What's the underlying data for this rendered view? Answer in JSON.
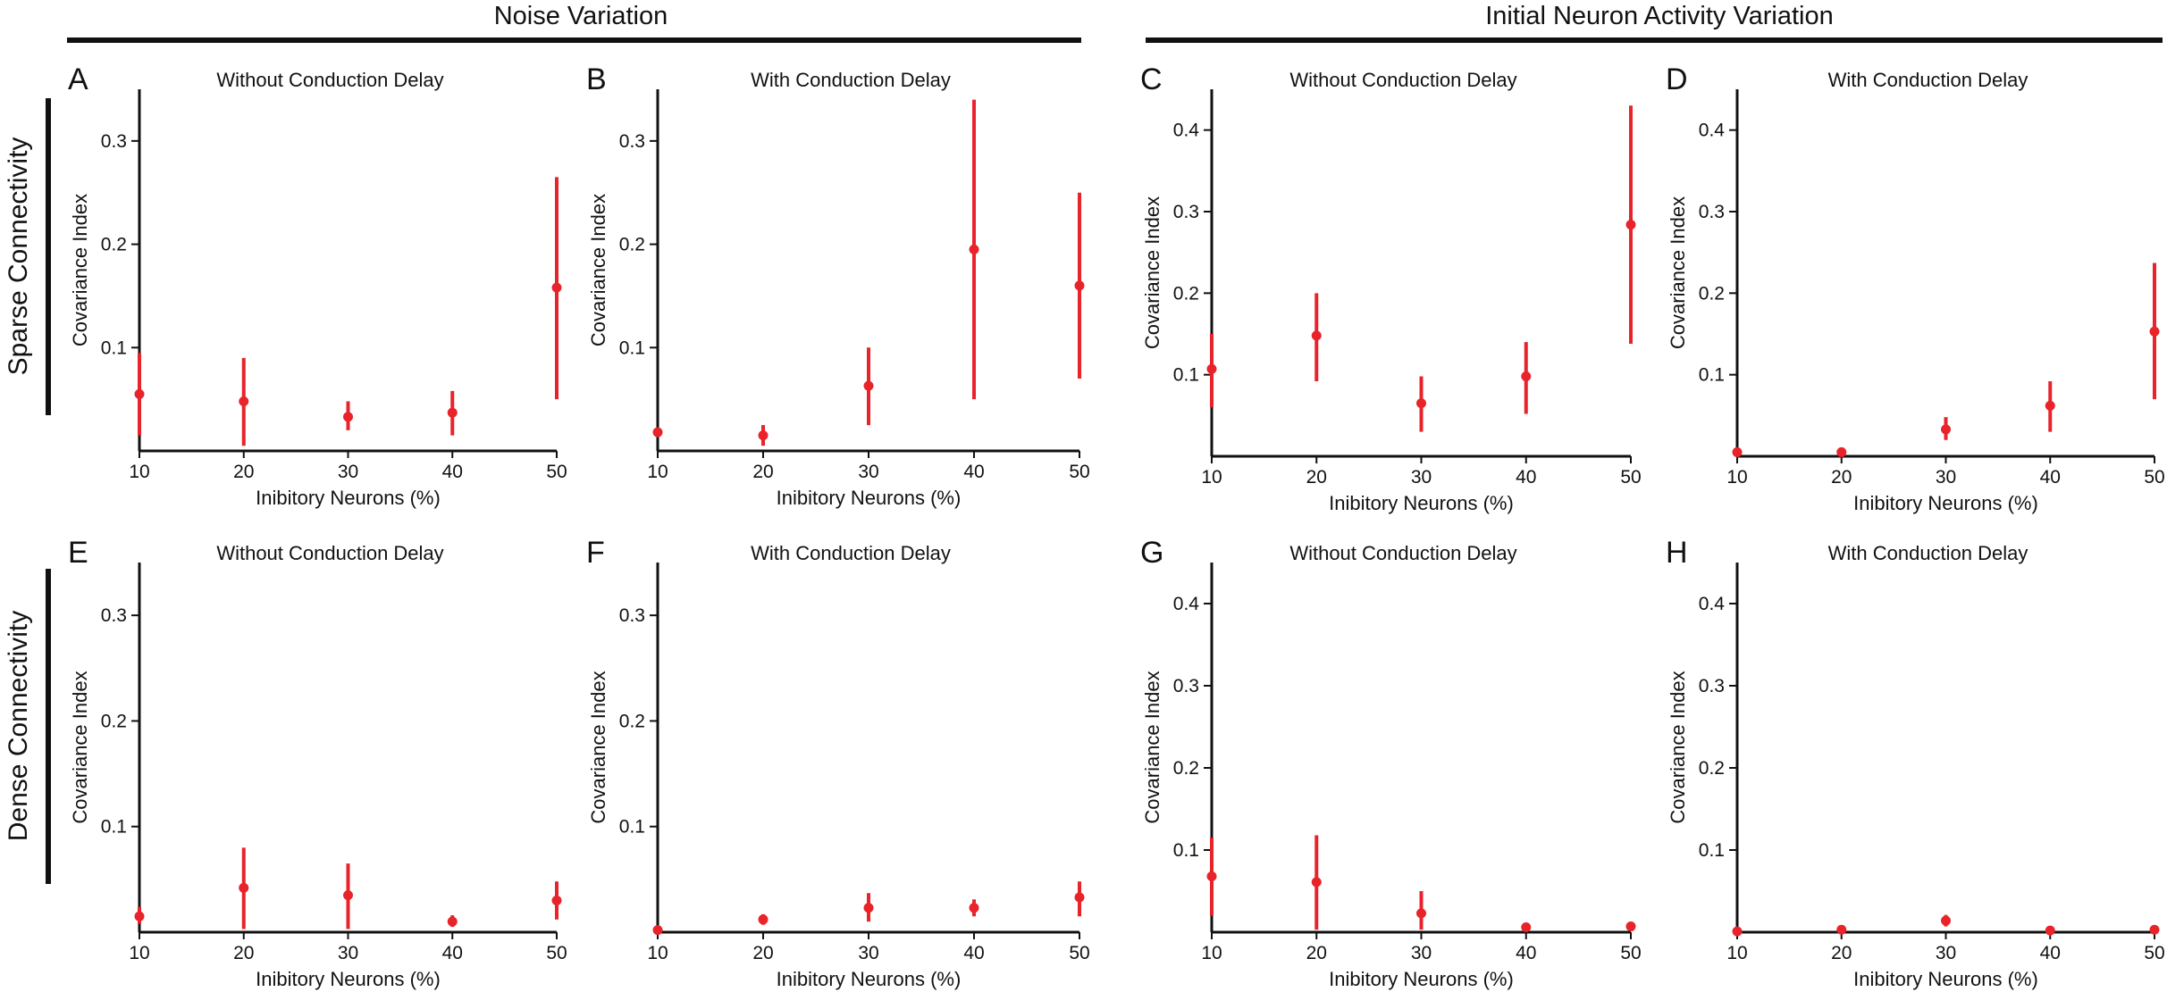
{
  "groups": [
    {
      "title": "Noise Variation"
    },
    {
      "title": "Initial Neuron Activity Variation"
    }
  ],
  "rows": [
    {
      "title": "Sparse Connectivity"
    },
    {
      "title": "Dense Connectivity"
    }
  ],
  "colors": {
    "marker": "#e8232a",
    "axis": "#111111"
  },
  "chart_data": [
    {
      "id": "A",
      "type": "scatter",
      "title": "Without Conduction Delay",
      "xlabel": "Inibitory Neurons (%)",
      "ylabel": "Covariance Index",
      "x": [
        10,
        20,
        30,
        40,
        50
      ],
      "y": [
        0.055,
        0.048,
        0.033,
        0.037,
        0.158
      ],
      "err_low": [
        0.015,
        0.005,
        0.02,
        0.015,
        0.05
      ],
      "err_high": [
        0.095,
        0.09,
        0.048,
        0.058,
        0.265
      ],
      "xlim": [
        10,
        50
      ],
      "ylim": [
        0,
        0.35
      ],
      "yticks": [
        0.1,
        0.2,
        0.3
      ]
    },
    {
      "id": "B",
      "type": "scatter",
      "title": "With Conduction Delay",
      "xlabel": "Inibitory Neurons (%)",
      "ylabel": "Covariance Index",
      "x": [
        10,
        20,
        30,
        40,
        50
      ],
      "y": [
        0.018,
        0.015,
        0.063,
        0.195,
        0.16
      ],
      "err_low": [
        0.018,
        0.005,
        0.025,
        0.05,
        0.07
      ],
      "err_high": [
        0.018,
        0.025,
        0.1,
        0.34,
        0.25
      ],
      "xlim": [
        10,
        50
      ],
      "ylim": [
        0,
        0.35
      ],
      "yticks": [
        0.1,
        0.2,
        0.3
      ]
    },
    {
      "id": "C",
      "type": "scatter",
      "title": "Without Conduction Delay",
      "xlabel": "Inibitory Neurons (%)",
      "ylabel": "Covariance Index",
      "x": [
        10,
        20,
        30,
        40,
        50
      ],
      "y": [
        0.107,
        0.148,
        0.065,
        0.098,
        0.284
      ],
      "err_low": [
        0.06,
        0.092,
        0.03,
        0.052,
        0.138
      ],
      "err_high": [
        0.15,
        0.2,
        0.098,
        0.14,
        0.43
      ],
      "xlim": [
        10,
        50
      ],
      "ylim": [
        0,
        0.45
      ],
      "yticks": [
        0.1,
        0.2,
        0.3,
        0.4
      ]
    },
    {
      "id": "D",
      "type": "scatter",
      "title": "With Conduction Delay",
      "xlabel": "Inibitory Neurons (%)",
      "ylabel": "Covariance Index",
      "x": [
        10,
        20,
        30,
        40,
        50
      ],
      "y": [
        0.005,
        0.005,
        0.033,
        0.062,
        0.153
      ],
      "err_low": [
        0.005,
        0.005,
        0.02,
        0.03,
        0.07
      ],
      "err_high": [
        0.005,
        0.005,
        0.048,
        0.092,
        0.237
      ],
      "xlim": [
        10,
        50
      ],
      "ylim": [
        0,
        0.45
      ],
      "yticks": [
        0.1,
        0.2,
        0.3,
        0.4
      ]
    },
    {
      "id": "E",
      "type": "scatter",
      "title": "Without Conduction Delay",
      "xlabel": "Inibitory Neurons (%)",
      "ylabel": "Covariance Index",
      "x": [
        10,
        20,
        30,
        40,
        50
      ],
      "y": [
        0.015,
        0.042,
        0.035,
        0.01,
        0.03
      ],
      "err_low": [
        0.008,
        0.003,
        0.003,
        0.005,
        0.012
      ],
      "err_high": [
        0.024,
        0.08,
        0.065,
        0.016,
        0.048
      ],
      "xlim": [
        10,
        50
      ],
      "ylim": [
        0,
        0.35
      ],
      "yticks": [
        0.1,
        0.2,
        0.3
      ]
    },
    {
      "id": "F",
      "type": "scatter",
      "title": "With Conduction Delay",
      "xlabel": "Inibitory Neurons (%)",
      "ylabel": "Covariance Index",
      "x": [
        10,
        20,
        30,
        40,
        50
      ],
      "y": [
        0.002,
        0.012,
        0.023,
        0.023,
        0.033
      ],
      "err_low": [
        0.002,
        0.007,
        0.01,
        0.015,
        0.015
      ],
      "err_high": [
        0.002,
        0.017,
        0.037,
        0.031,
        0.048
      ],
      "xlim": [
        10,
        50
      ],
      "ylim": [
        0,
        0.35
      ],
      "yticks": [
        0.1,
        0.2,
        0.3
      ]
    },
    {
      "id": "G",
      "type": "scatter",
      "title": "Without Conduction Delay",
      "xlabel": "Inibitory Neurons (%)",
      "ylabel": "Covariance Index",
      "x": [
        10,
        20,
        30,
        40,
        50
      ],
      "y": [
        0.068,
        0.061,
        0.023,
        0.006,
        0.007
      ],
      "err_low": [
        0.02,
        0.003,
        0.003,
        0.003,
        0.003
      ],
      "err_high": [
        0.115,
        0.118,
        0.05,
        0.008,
        0.01
      ],
      "xlim": [
        10,
        50
      ],
      "ylim": [
        0,
        0.45
      ],
      "yticks": [
        0.1,
        0.2,
        0.3,
        0.4
      ]
    },
    {
      "id": "H",
      "type": "scatter",
      "title": "With Conduction Delay",
      "xlabel": "Inibitory Neurons (%)",
      "ylabel": "Covariance Index",
      "x": [
        10,
        20,
        30,
        40,
        50
      ],
      "y": [
        0.001,
        0.003,
        0.014,
        0.002,
        0.003
      ],
      "err_low": [
        0.001,
        0.001,
        0.007,
        0.001,
        0.001
      ],
      "err_high": [
        0.001,
        0.005,
        0.021,
        0.003,
        0.005
      ],
      "xlim": [
        10,
        50
      ],
      "ylim": [
        0,
        0.45
      ],
      "yticks": [
        0.1,
        0.2,
        0.3,
        0.4
      ]
    }
  ]
}
